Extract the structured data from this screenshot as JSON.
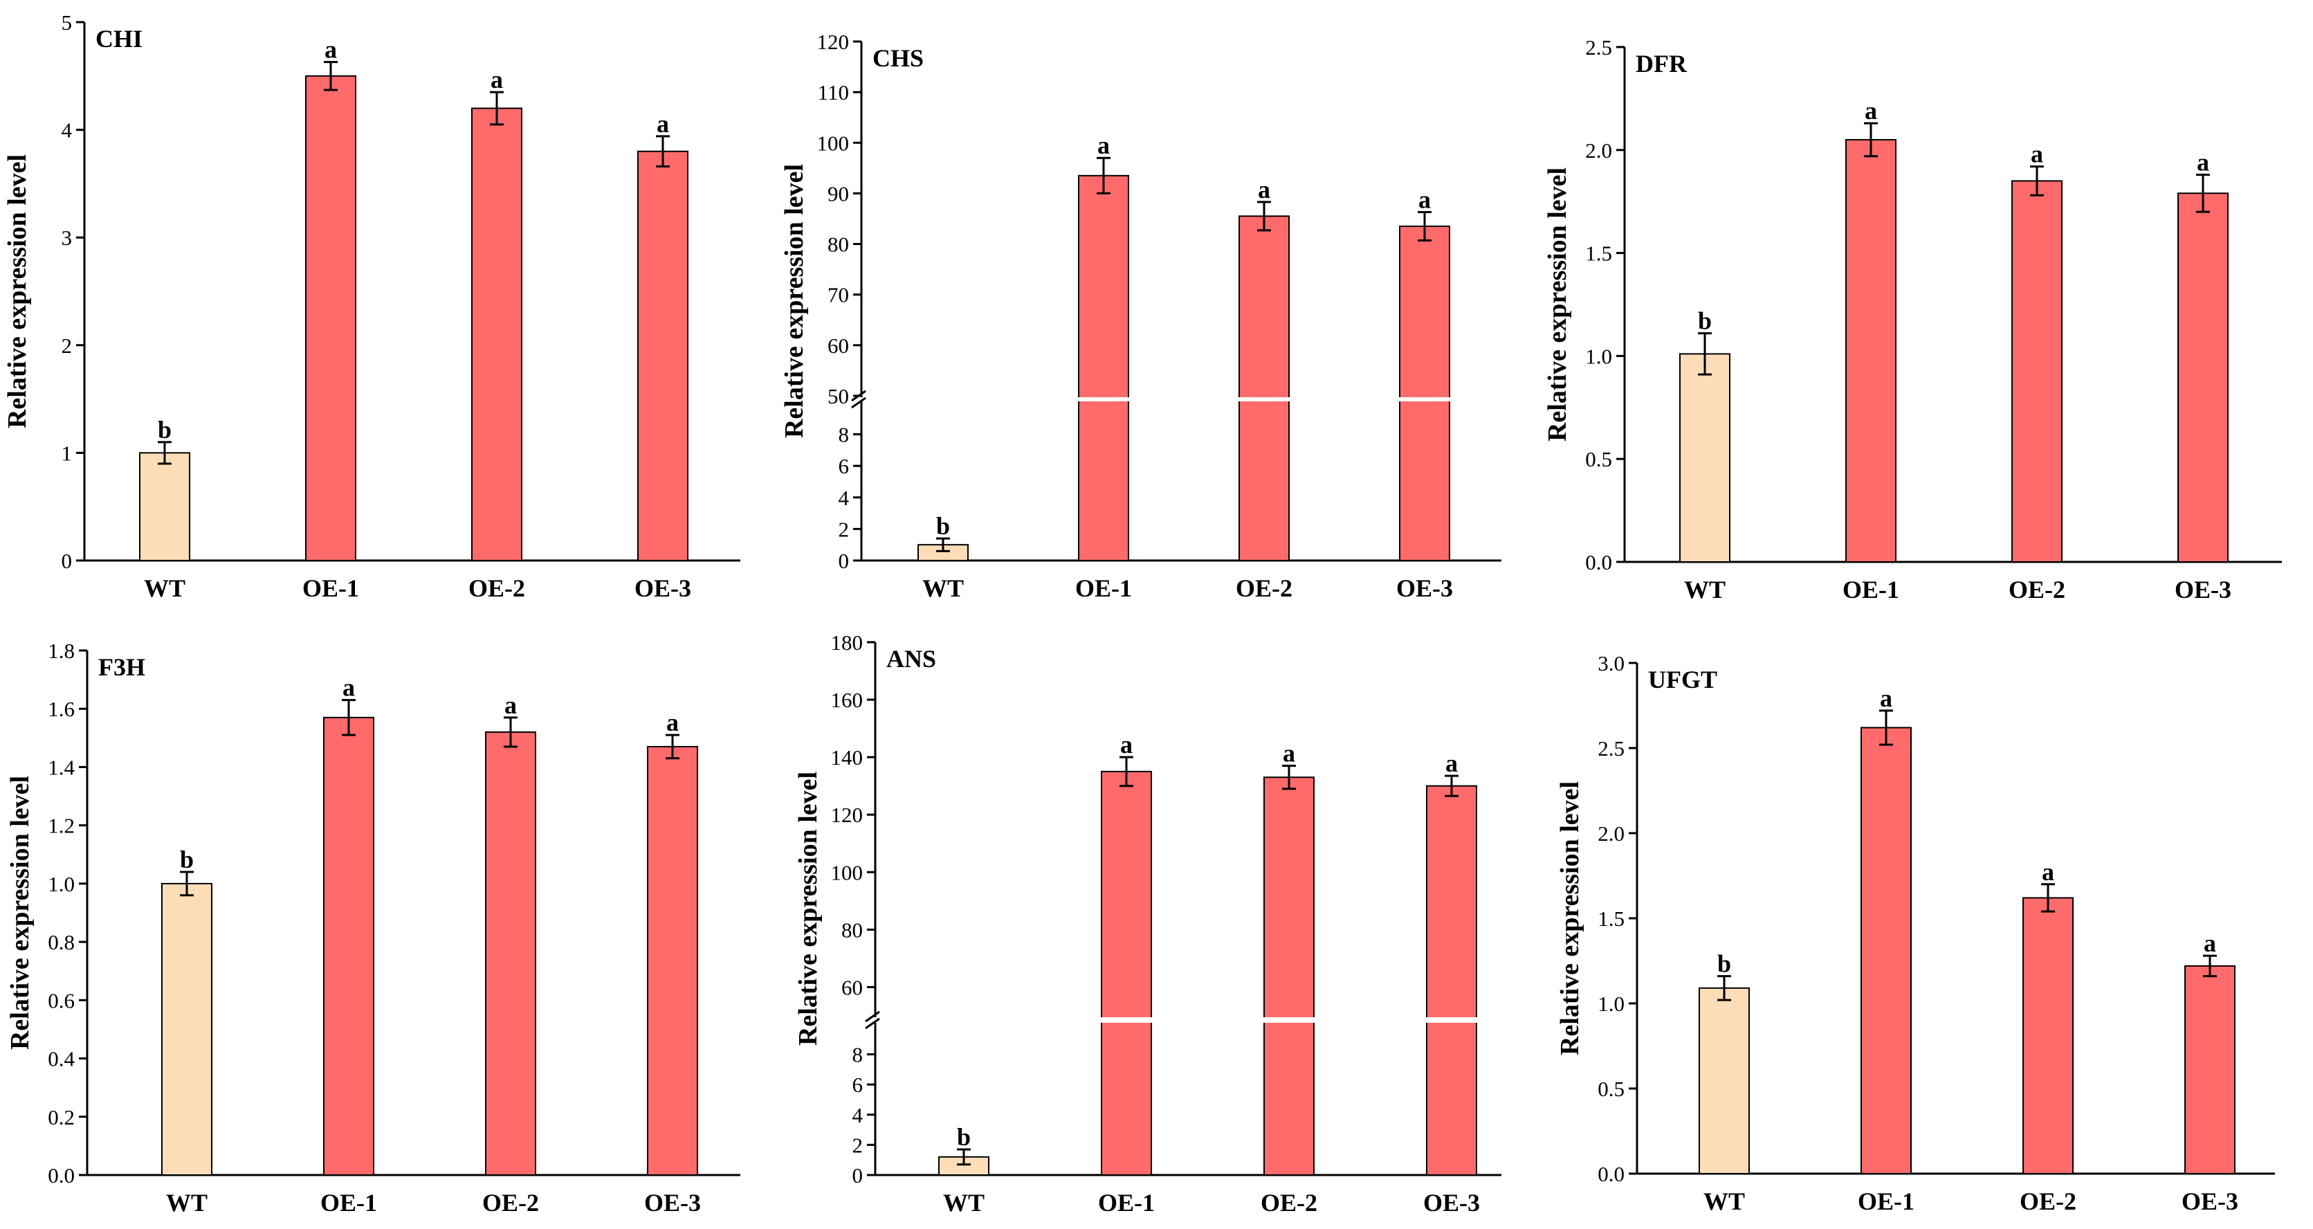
{
  "figure": {
    "y_axis_label": "Relative expression level",
    "colors": {
      "wt": "#FCDDB8",
      "oe": "#FF6B6B",
      "axis": "#000000"
    }
  },
  "chart_data": [
    {
      "type": "bar",
      "title": "CHI",
      "categories": [
        "WT",
        "OE-1",
        "OE-2",
        "OE-3"
      ],
      "values": [
        1.0,
        4.5,
        4.2,
        3.8
      ],
      "errors": [
        0.1,
        0.13,
        0.15,
        0.14
      ],
      "significance": [
        "b",
        "a",
        "a",
        "a"
      ],
      "ylabel": "Relative expression level",
      "ylim": [
        0,
        5
      ],
      "yticks": [
        0,
        1,
        2,
        3,
        4,
        5
      ],
      "ytick_labels": [
        "0",
        "1",
        "2",
        "3",
        "4",
        "5"
      ]
    },
    {
      "type": "bar",
      "title": "CHS",
      "categories": [
        "WT",
        "OE-1",
        "OE-2",
        "OE-3"
      ],
      "values": [
        1.0,
        93.5,
        85.5,
        83.5
      ],
      "errors": [
        0.4,
        3.5,
        2.8,
        2.8
      ],
      "significance": [
        "b",
        "a",
        "a",
        "a"
      ],
      "ylabel": "Relative expression level",
      "broken_axis": {
        "lower_range": [
          0,
          10
        ],
        "upper_range": [
          50,
          120
        ]
      },
      "yticks": [
        0,
        2,
        4,
        6,
        8,
        50,
        60,
        70,
        80,
        90,
        100,
        110,
        120
      ],
      "ytick_labels": [
        "0",
        "2",
        "4",
        "6",
        "8",
        "50",
        "60",
        "70",
        "80",
        "90",
        "100",
        "110",
        "120"
      ]
    },
    {
      "type": "bar",
      "title": "DFR",
      "categories": [
        "WT",
        "OE-1",
        "OE-2",
        "OE-3"
      ],
      "values": [
        1.01,
        2.05,
        1.85,
        1.79
      ],
      "errors": [
        0.1,
        0.08,
        0.07,
        0.09
      ],
      "significance": [
        "b",
        "a",
        "a",
        "a"
      ],
      "ylabel": "Relative expression level",
      "ylim": [
        0,
        2.5
      ],
      "yticks": [
        0,
        0.5,
        1.0,
        1.5,
        2.0,
        2.5
      ],
      "ytick_labels": [
        "0.0",
        "0.5",
        "1.0",
        "1.5",
        "2.0",
        "2.5"
      ]
    },
    {
      "type": "bar",
      "title": "F3H",
      "categories": [
        "WT",
        "OE-1",
        "OE-2",
        "OE-3"
      ],
      "values": [
        1.0,
        1.57,
        1.52,
        1.47
      ],
      "errors": [
        0.04,
        0.06,
        0.05,
        0.04
      ],
      "significance": [
        "b",
        "a",
        "a",
        "a"
      ],
      "ylabel": "Relative expression level",
      "ylim": [
        0,
        1.8
      ],
      "yticks": [
        0,
        0.2,
        0.4,
        0.6,
        0.8,
        1.0,
        1.2,
        1.4,
        1.6,
        1.8
      ],
      "ytick_labels": [
        "0.0",
        "0.2",
        "0.4",
        "0.6",
        "0.8",
        "1.0",
        "1.2",
        "1.4",
        "1.6",
        "1.8"
      ]
    },
    {
      "type": "bar",
      "title": "ANS",
      "categories": [
        "WT",
        "OE-1",
        "OE-2",
        "OE-3"
      ],
      "values": [
        1.2,
        135,
        133,
        130
      ],
      "errors": [
        0.5,
        5,
        4,
        3.5
      ],
      "significance": [
        "b",
        "a",
        "a",
        "a"
      ],
      "ylabel": "Relative expression level",
      "broken_axis": {
        "lower_range": [
          0,
          10
        ],
        "upper_range": [
          50,
          180
        ]
      },
      "yticks": [
        0,
        2,
        4,
        6,
        8,
        60,
        80,
        100,
        120,
        140,
        160,
        180
      ],
      "ytick_labels": [
        "0",
        "2",
        "4",
        "6",
        "8",
        "60",
        "80",
        "100",
        "120",
        "140",
        "160",
        "180"
      ]
    },
    {
      "type": "bar",
      "title": "UFGT",
      "categories": [
        "WT",
        "OE-1",
        "OE-2",
        "OE-3"
      ],
      "values": [
        1.09,
        2.62,
        1.62,
        1.22
      ],
      "errors": [
        0.07,
        0.1,
        0.08,
        0.06
      ],
      "significance": [
        "b",
        "a",
        "a",
        "a"
      ],
      "ylabel": "Relative expression level",
      "ylim": [
        0,
        3.0
      ],
      "yticks": [
        0,
        0.5,
        1.0,
        1.5,
        2.0,
        2.5,
        3.0
      ],
      "ytick_labels": [
        "0.0",
        "0.5",
        "1.0",
        "1.5",
        "2.0",
        "2.5",
        "3.0"
      ]
    }
  ]
}
